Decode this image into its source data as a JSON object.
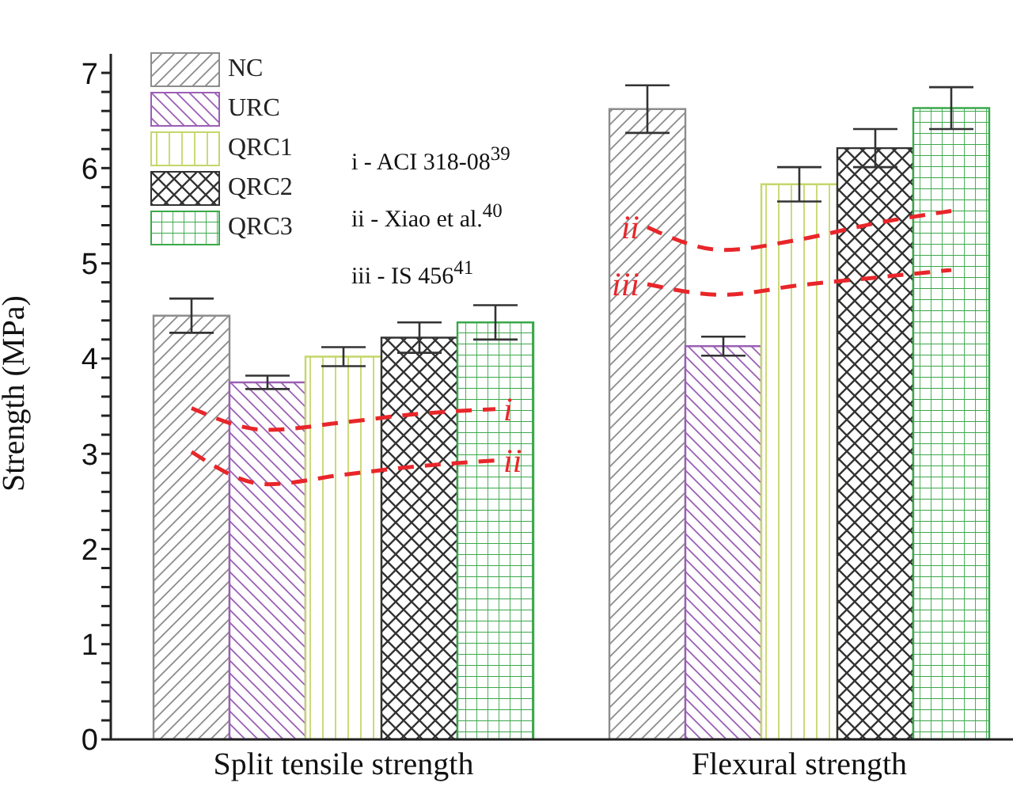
{
  "chart_data": {
    "type": "bar",
    "ylabel": "Strength (MPa)",
    "categories": [
      null,
      null,
      "Split tensile strength",
      null,
      null,
      null,
      null,
      null,
      "Flexural strength",
      null,
      null
    ],
    "series": [
      {
        "name": "NC",
        "color": "#8c8c8c",
        "values": [
          4.45,
          null,
          null,
          null,
          null,
          null,
          6.62,
          null,
          null,
          null,
          null
        ],
        "errors": [
          0.18,
          null,
          null,
          null,
          null,
          null,
          0.25,
          null,
          null,
          null,
          null
        ]
      },
      {
        "name": "URC",
        "color": "#9b5fb5",
        "values": [
          null,
          3.75,
          null,
          null,
          null,
          null,
          null,
          4.13,
          null,
          null,
          null
        ],
        "errors": [
          null,
          0.07,
          null,
          null,
          null,
          null,
          null,
          0.1,
          null,
          null,
          null
        ]
      },
      {
        "name": "QRC1",
        "color": "#c6d66a",
        "values": [
          null,
          null,
          4.02,
          null,
          null,
          null,
          null,
          null,
          5.83,
          null,
          null
        ],
        "errors": [
          null,
          null,
          0.1,
          null,
          null,
          null,
          null,
          null,
          0.18,
          null,
          null
        ]
      },
      {
        "name": "QRC2",
        "color": "#333333",
        "values": [
          null,
          null,
          null,
          4.22,
          null,
          null,
          null,
          null,
          null,
          6.21,
          null
        ],
        "errors": [
          null,
          null,
          null,
          0.16,
          null,
          null,
          null,
          null,
          null,
          0.2,
          null
        ]
      },
      {
        "name": "QRC3",
        "color": "#3aa84a",
        "values": [
          null,
          null,
          null,
          null,
          4.38,
          null,
          null,
          null,
          null,
          null,
          6.63
        ],
        "errors": [
          null,
          null,
          null,
          null,
          0.18,
          null,
          null,
          null,
          null,
          null,
          0.22
        ]
      },
      {
        "name": "i",
        "type": "line",
        "color": "#e8262a",
        "line_style": "dashed",
        "values": [
          3.48,
          3.25,
          3.33,
          3.42,
          3.47,
          null,
          null,
          null,
          null,
          null,
          null
        ]
      },
      {
        "name": "ii",
        "type": "line",
        "color": "#e8262a",
        "line_style": "dashed",
        "values": [
          3.02,
          2.68,
          2.78,
          2.87,
          2.93,
          null,
          5.38,
          5.14,
          5.25,
          5.42,
          5.55
        ]
      },
      {
        "name": "iii",
        "type": "line",
        "color": "#e8262a",
        "line_style": "dashed",
        "values": [
          null,
          null,
          null,
          null,
          null,
          null,
          4.78,
          4.67,
          4.77,
          4.85,
          4.93
        ]
      }
    ],
    "ylim": [
      0,
      7.2
    ],
    "yticks": [
      0,
      {
        "value": 0.2,
        "label": null
      },
      {
        "value": 0.4,
        "label": null
      },
      {
        "value": 0.6,
        "label": null
      },
      {
        "value": 0.8,
        "label": null
      },
      1,
      {
        "value": 1.2,
        "label": null
      },
      {
        "value": 1.4,
        "label": null
      },
      {
        "value": 1.6,
        "label": null
      },
      {
        "value": 1.8,
        "label": null
      },
      2,
      {
        "value": 2.2,
        "label": null
      },
      {
        "value": 2.4,
        "label": null
      },
      {
        "value": 2.6,
        "label": null
      },
      {
        "value": 2.8,
        "label": null
      },
      3,
      {
        "value": 3.2,
        "label": null
      },
      {
        "value": 3.4,
        "label": null
      },
      {
        "value": 3.6,
        "label": null
      },
      {
        "value": 3.8,
        "label": null
      },
      4,
      {
        "value": 4.2,
        "label": null
      },
      {
        "value": 4.4,
        "label": null
      },
      {
        "value": 4.6,
        "label": null
      },
      {
        "value": 4.8,
        "label": null
      },
      5,
      {
        "value": 5.2,
        "label": null
      },
      {
        "value": 5.4,
        "label": null
      },
      {
        "value": 5.6,
        "label": null
      },
      {
        "value": 5.8,
        "label": null
      },
      6,
      {
        "value": 6.2,
        "label": null
      },
      {
        "value": 6.4,
        "label": null
      },
      {
        "value": 6.6,
        "label": null
      },
      {
        "value": 6.8,
        "label": null
      },
      7
    ],
    "legend": "top left",
    "marker": "none",
    "annotations": [
      "i - ACI 318-08$^{39}$",
      "ii - Xiao et al.$^{40}$",
      "iii - IS 456$^{41}$"
    ]
  }
}
